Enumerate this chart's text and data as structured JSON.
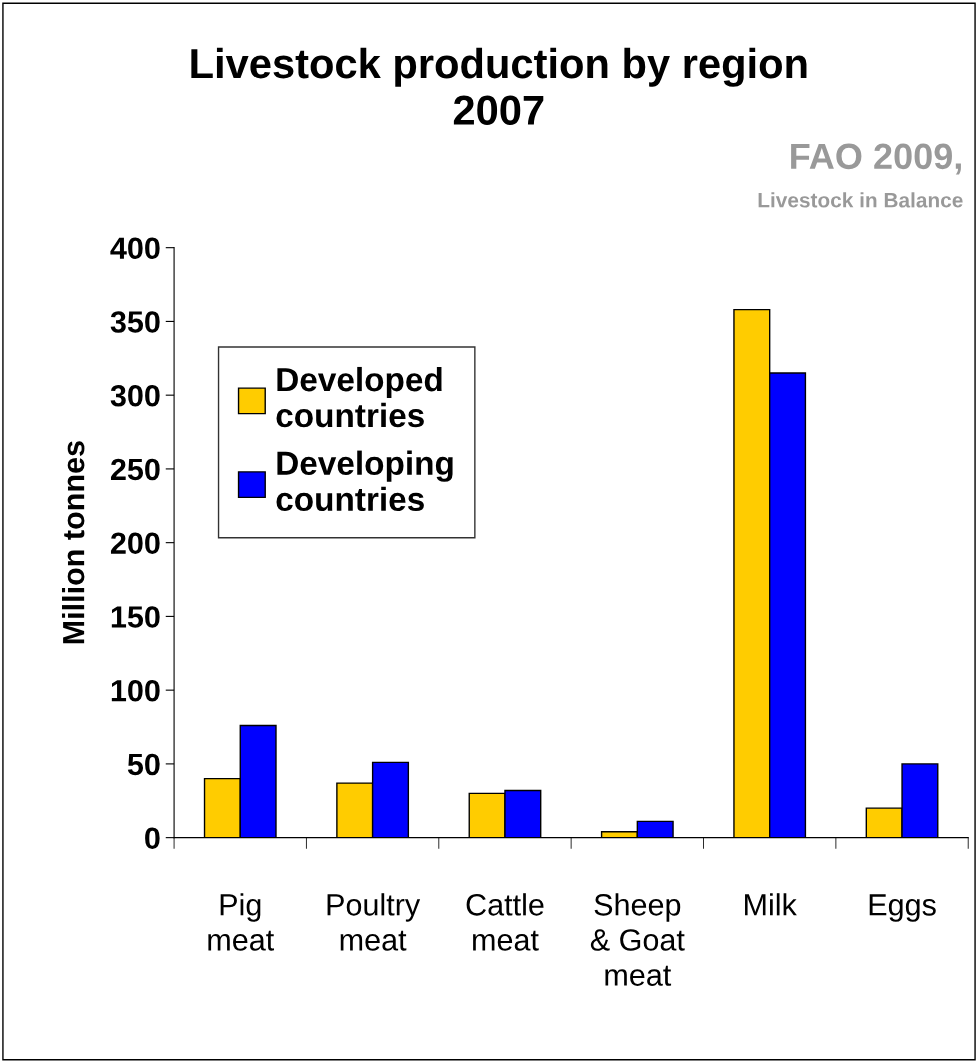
{
  "chart_data": {
    "type": "bar",
    "title": "Livestock production by region\n2007",
    "ylabel": "Million tonnes",
    "annotations": [
      "FAO 2009,",
      "Livestock in Balance"
    ],
    "categories": [
      "Pig\nmeat",
      "Poultry\nmeat",
      "Cattle\nmeat",
      "Sheep\n& Goat\nmeat",
      "Milk",
      "Eggs"
    ],
    "series": [
      {
        "name": "Developed\ncountries",
        "color": "#ffcc00",
        "values": [
          40,
          37,
          30,
          4,
          358,
          20
        ]
      },
      {
        "name": "Developing\ncountries",
        "color": "#0000ff",
        "values": [
          76,
          51,
          32,
          11,
          315,
          50
        ]
      }
    ],
    "ylim": [
      0,
      400
    ],
    "yticks": [
      0,
      50,
      100,
      150,
      200,
      250,
      300,
      350,
      400
    ],
    "grid": false,
    "legend": "top left"
  }
}
